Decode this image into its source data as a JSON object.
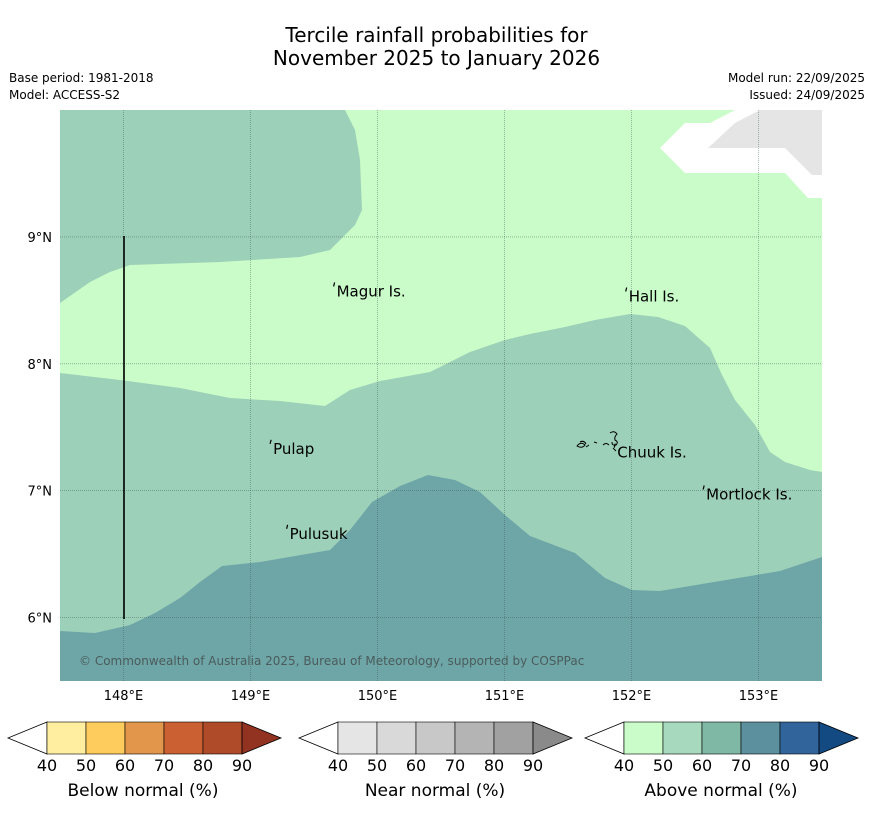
{
  "title_line1": "Tercile rainfall probabilities for",
  "title_line2": "November 2025 to January 2026",
  "base_period": "Base period: 1981-2018",
  "model": "Model: ACCESS-S2",
  "model_run": "Model run: 22/09/2025",
  "issued": "Issued: 24/09/2025",
  "copyright": "© Commonwealth of Australia 2025, Bureau of Meteorology, supported by COSPPac",
  "map": {
    "lon_range": [
      147.5,
      153.5
    ],
    "lat_range": [
      5.5,
      10.0
    ],
    "lon_ticks": [
      {
        "value": 148,
        "label": "148°E"
      },
      {
        "value": 149,
        "label": "149°E"
      },
      {
        "value": 150,
        "label": "150°E"
      },
      {
        "value": 151,
        "label": "151°E"
      },
      {
        "value": 152,
        "label": "152°E"
      },
      {
        "value": 153,
        "label": "153°E"
      }
    ],
    "lat_ticks": [
      {
        "value": 9,
        "label": "9°N"
      },
      {
        "value": 8,
        "label": "8°N"
      },
      {
        "value": 7,
        "label": "7°N"
      },
      {
        "value": 6,
        "label": "6°N"
      }
    ],
    "places": [
      {
        "name": "Magur Is.",
        "lon": 149.67,
        "lat": 8.57
      },
      {
        "name": "Hall Is.",
        "lon": 151.97,
        "lat": 8.53
      },
      {
        "name": "Pulap",
        "lon": 149.17,
        "lat": 7.33
      },
      {
        "name": "Chuuk Is.",
        "lon": 151.88,
        "lat": 7.3
      },
      {
        "name": "Mortlock Is.",
        "lon": 152.58,
        "lat": 6.97
      },
      {
        "name": "Pulusuk",
        "lon": 149.3,
        "lat": 6.66
      }
    ],
    "zones": [
      {
        "category": "Above normal",
        "range": "40-50",
        "color": "#c9fcc8"
      },
      {
        "category": "Above normal",
        "range": "50-60",
        "color": "#9dd0b8"
      },
      {
        "category": "Above normal",
        "range": "60-70",
        "color": "#6ea6a8"
      },
      {
        "category": "No data",
        "color": "#e5e5e5"
      }
    ]
  },
  "colorbars": [
    {
      "label": "Below normal (%)",
      "ticks": [
        "40",
        "50",
        "60",
        "70",
        "80",
        "90"
      ],
      "under": "#ffffff",
      "colors": [
        "#ffeda0",
        "#fecc5c",
        "#e1964b",
        "#cb6132",
        "#b04b2a"
      ],
      "over": "#923221"
    },
    {
      "label": "Near normal (%)",
      "ticks": [
        "40",
        "50",
        "60",
        "70",
        "80",
        "90"
      ],
      "under": "#ffffff",
      "colors": [
        "#e5e5e5",
        "#d9d9d9",
        "#c8c8c8",
        "#b4b4b4",
        "#a1a1a1"
      ],
      "over": "#8a8a8a"
    },
    {
      "label": "Above normal (%)",
      "ticks": [
        "40",
        "50",
        "60",
        "70",
        "80",
        "90"
      ],
      "under": "#ffffff",
      "colors": [
        "#c9fcc8",
        "#a6d9bd",
        "#7fb8a5",
        "#5c909f",
        "#31649b"
      ],
      "over": "#134a82"
    }
  ]
}
